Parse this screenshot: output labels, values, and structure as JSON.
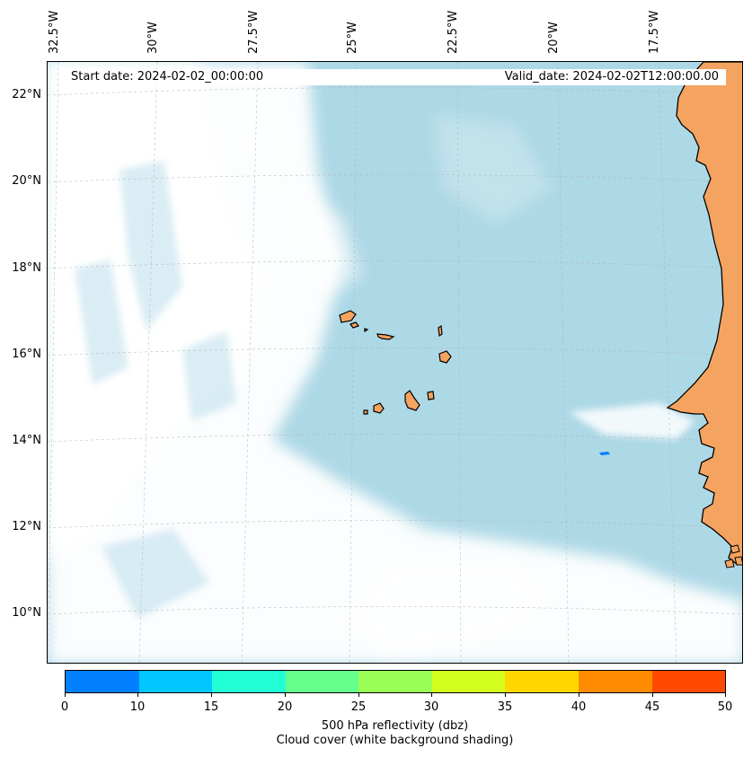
{
  "map": {
    "start_date": "Start date: 2024-02-02_00:00:00",
    "valid_date": "Valid_date: 2024-02-02T12:00:00.00",
    "lon_labels": [
      "32.5°W",
      "30°W",
      "27.5°W",
      "25°W",
      "22.5°W",
      "20°W",
      "17.5°W"
    ],
    "lat_labels": [
      "22°N",
      "20°N",
      "18°N",
      "16°N",
      "14°N",
      "12°N",
      "10°N"
    ],
    "colors": {
      "ocean_cloud_free": "#add8e6",
      "cloud_cover": "#ffffff",
      "land": "#f4a460",
      "coastline": "#000000",
      "reflectivity_echo": "#0080ff"
    },
    "features": [
      "cloud-cover-shading",
      "land-mass-africa",
      "cape-verde-islands",
      "reflectivity-echo",
      "gridlines"
    ]
  },
  "colorbar": {
    "colors": [
      "#0080ff",
      "#00c8ff",
      "#22ffd7",
      "#64ff8c",
      "#9aff55",
      "#d4ff1e",
      "#ffd700",
      "#ff8c00",
      "#ff4a00"
    ],
    "ticks": [
      "0",
      "10",
      "15",
      "20",
      "25",
      "30",
      "35",
      "40",
      "45",
      "50"
    ],
    "title_line1": "500 hPa reflectivity (dbz)",
    "title_line2": "Cloud cover (white background shading)"
  }
}
